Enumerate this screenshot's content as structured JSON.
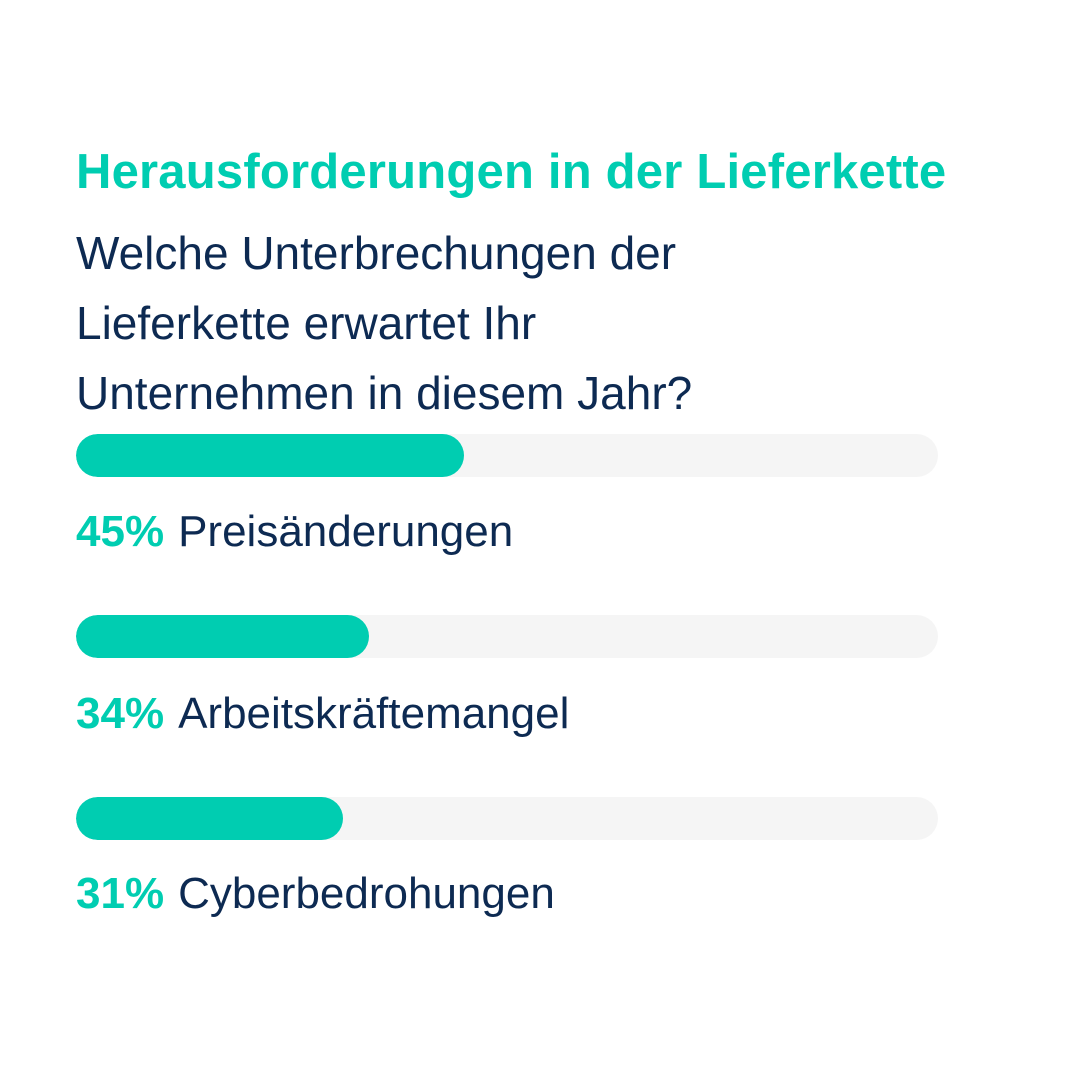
{
  "colors": {
    "accent": "#00cdb1",
    "text": "#0d2a52",
    "track": "#f5f5f5",
    "background": "#ffffff"
  },
  "chart_data": {
    "type": "bar",
    "orientation": "horizontal",
    "title": "Herausforderungen in der Lieferkette",
    "subtitle_lines": [
      "Welche Unterbrechungen der",
      "Lieferkette erwartet Ihr",
      "Unternehmen in diesem Jahr?"
    ],
    "xlim": [
      0,
      100
    ],
    "grid": false,
    "legend": "none",
    "items": [
      {
        "category": "Preisänderungen",
        "value": 45,
        "value_label": "45%"
      },
      {
        "category": "Arbeitskräftemangel",
        "value": 34,
        "value_label": "34%"
      },
      {
        "category": "Cyberbedrohungen",
        "value": 31,
        "value_label": "31%"
      }
    ]
  }
}
